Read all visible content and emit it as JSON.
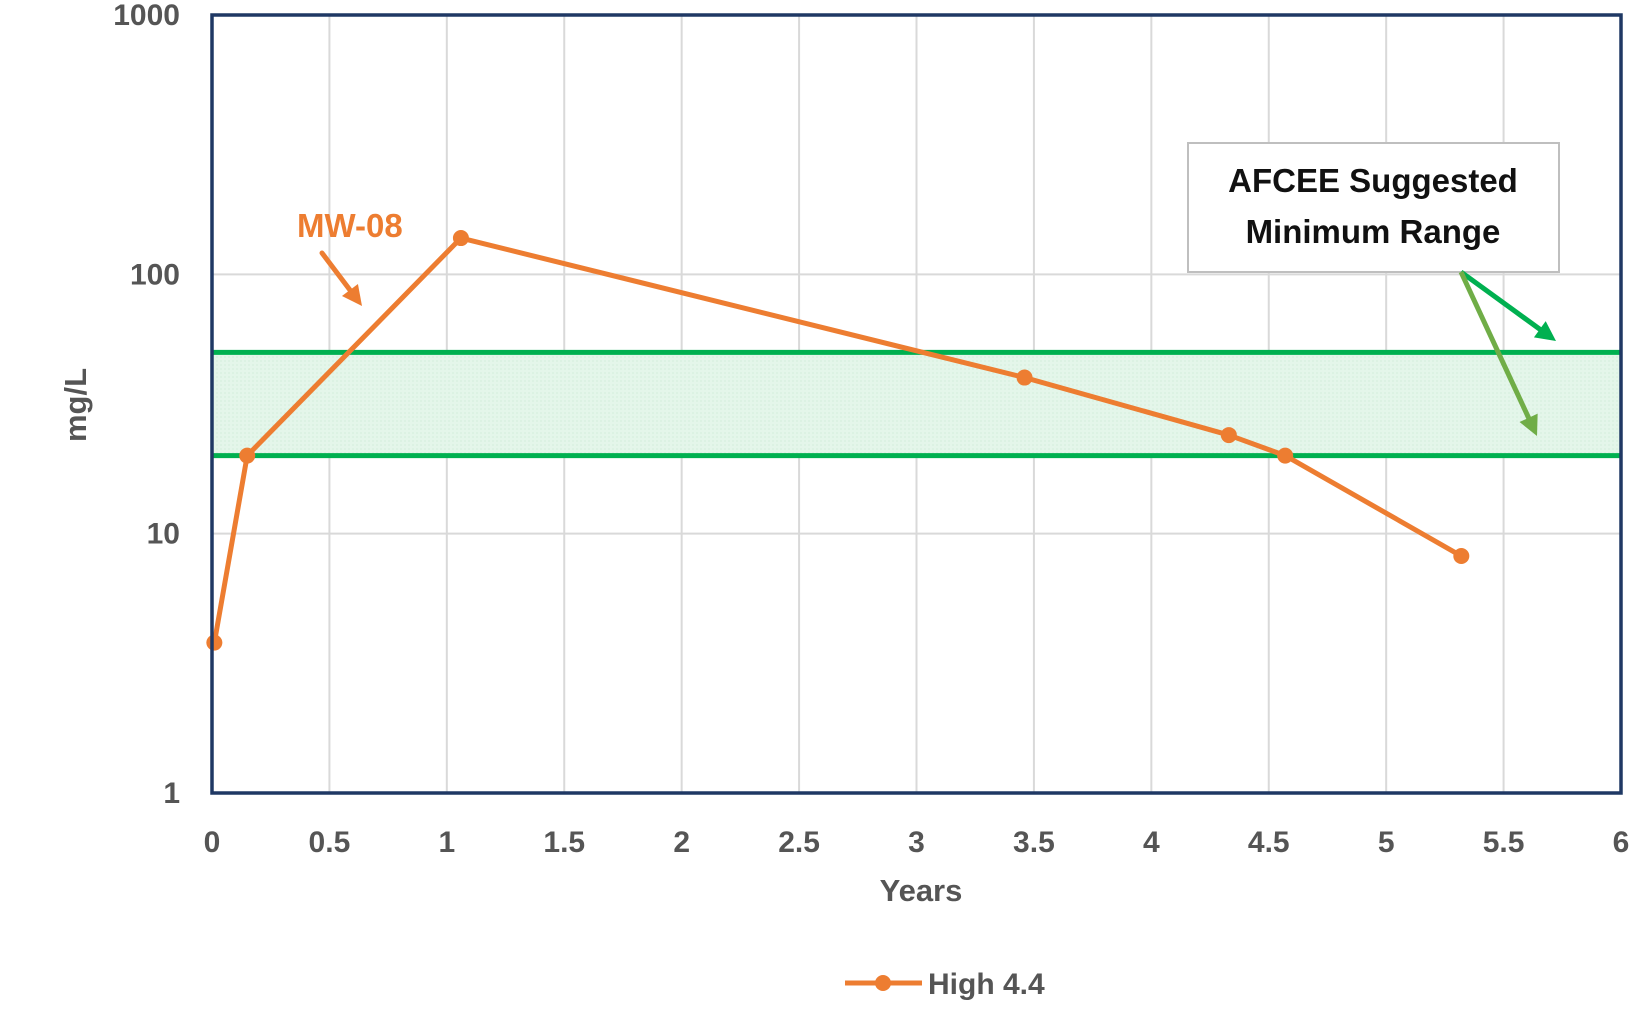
{
  "chart_data": {
    "type": "line",
    "xlabel": "Years",
    "ylabel": "mg/L",
    "xlim": [
      0,
      6
    ],
    "ylim": [
      1,
      1000
    ],
    "yscale": "log",
    "grid": true,
    "legend_position": "bottom",
    "x_ticks": [
      "0",
      "0.5",
      "1",
      "1.5",
      "2",
      "2.5",
      "3",
      "3.5",
      "4",
      "4.5",
      "5",
      "5.5",
      "6"
    ],
    "y_ticks": [
      "1",
      "10",
      "100",
      "1000"
    ],
    "series": [
      {
        "name": "High 4.4",
        "color": "#ED7D31",
        "x": [
          0.01,
          0.15,
          1.06,
          3.46,
          4.33,
          4.57,
          5.32
        ],
        "y": [
          3.8,
          20,
          138,
          40,
          24,
          20,
          8.2
        ]
      }
    ],
    "band": {
      "lower": 20,
      "upper": 50,
      "line_color": "#00B050",
      "fill_color": "#E2F5E8"
    },
    "annotations": {
      "series_label": "MW-08",
      "callout_line1": "AFCEE Suggested",
      "callout_line2": "Minimum Range"
    },
    "colors": {
      "plot_border": "#1F3864",
      "arrow_dark": "#00B050",
      "arrow_light": "#70AD47"
    }
  }
}
